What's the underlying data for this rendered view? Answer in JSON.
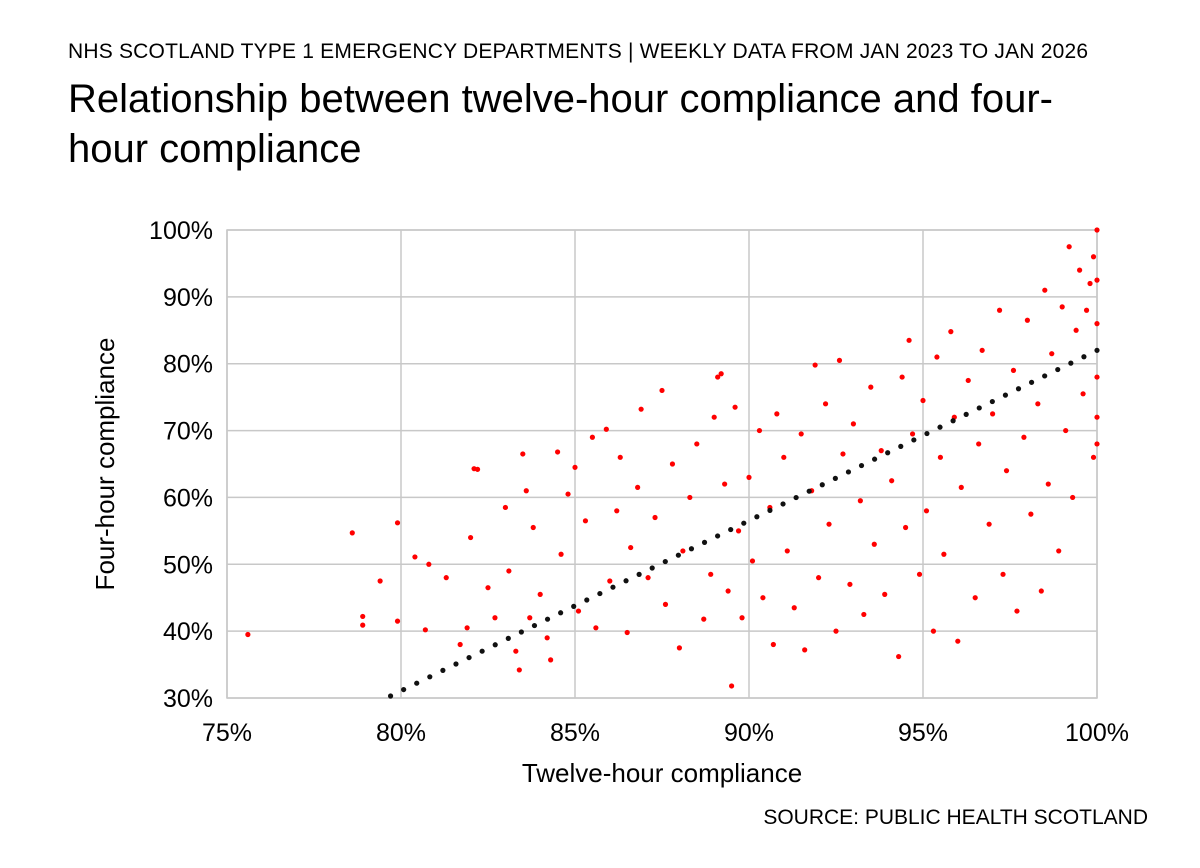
{
  "header": {
    "supertitle": "NHS SCOTLAND TYPE 1 EMERGENCY DEPARTMENTS | WEEKLY DATA FROM JAN 2023 TO JAN 2026",
    "title": "Relationship between twelve-hour compliance and four-hour compliance"
  },
  "footer": {
    "source": "SOURCE: PUBLIC HEALTH SCOTLAND"
  },
  "colors": {
    "points": "#ff0000",
    "trendline": "#111111",
    "grid": "#c8c8c8"
  },
  "chart_data": {
    "type": "scatter",
    "xlabel": "Twelve-hour compliance",
    "ylabel": "Four-hour compliance",
    "xlim": [
      75,
      100
    ],
    "ylim": [
      30,
      100
    ],
    "x_ticks": [
      "75%",
      "80%",
      "85%",
      "90%",
      "95%",
      "100%"
    ],
    "y_ticks": [
      "30%",
      "40%",
      "50%",
      "60%",
      "70%",
      "80%",
      "90%",
      "100%"
    ],
    "grid": true,
    "trendline": {
      "style": "dotted",
      "from": [
        79.7,
        30.3
      ],
      "to": [
        100,
        82.0
      ]
    },
    "series": [
      {
        "points": [
          [
            75.6,
            39.5
          ],
          [
            78.6,
            54.7
          ],
          [
            78.9,
            42.2
          ],
          [
            78.9,
            40.9
          ],
          [
            79.4,
            47.5
          ],
          [
            79.9,
            56.2
          ],
          [
            79.9,
            41.5
          ],
          [
            80.4,
            51.1
          ],
          [
            80.7,
            40.2
          ],
          [
            80.8,
            50.0
          ],
          [
            81.3,
            48.0
          ],
          [
            81.7,
            38.0
          ],
          [
            81.9,
            40.5
          ],
          [
            82.0,
            54.0
          ],
          [
            82.1,
            64.3
          ],
          [
            82.2,
            64.2
          ],
          [
            82.5,
            46.5
          ],
          [
            82.7,
            42.0
          ],
          [
            83.0,
            58.5
          ],
          [
            83.1,
            49.0
          ],
          [
            83.3,
            37.0
          ],
          [
            83.4,
            34.2
          ],
          [
            83.5,
            66.5
          ],
          [
            83.6,
            61.0
          ],
          [
            83.7,
            42.0
          ],
          [
            83.8,
            55.5
          ],
          [
            84.0,
            45.5
          ],
          [
            84.2,
            39.0
          ],
          [
            84.3,
            35.7
          ],
          [
            84.5,
            66.8
          ],
          [
            84.6,
            51.5
          ],
          [
            84.8,
            60.5
          ],
          [
            85.0,
            64.5
          ],
          [
            85.1,
            43.0
          ],
          [
            85.3,
            56.5
          ],
          [
            85.5,
            69.0
          ],
          [
            85.6,
            40.5
          ],
          [
            85.9,
            70.2
          ],
          [
            86.0,
            47.5
          ],
          [
            86.2,
            58.0
          ],
          [
            86.3,
            66.0
          ],
          [
            86.5,
            39.8
          ],
          [
            86.6,
            52.5
          ],
          [
            86.8,
            61.5
          ],
          [
            86.9,
            73.2
          ],
          [
            87.1,
            48.0
          ],
          [
            87.3,
            57.0
          ],
          [
            87.5,
            76.0
          ],
          [
            87.6,
            44.0
          ],
          [
            87.8,
            65.0
          ],
          [
            88.0,
            37.5
          ],
          [
            88.1,
            52.0
          ],
          [
            88.3,
            60.0
          ],
          [
            88.5,
            68.0
          ],
          [
            88.7,
            41.8
          ],
          [
            88.9,
            48.5
          ],
          [
            89.0,
            72.0
          ],
          [
            89.1,
            78.0
          ],
          [
            89.2,
            78.5
          ],
          [
            89.3,
            62.0
          ],
          [
            89.4,
            46.0
          ],
          [
            89.5,
            31.8
          ],
          [
            89.6,
            73.5
          ],
          [
            89.7,
            55.0
          ],
          [
            89.8,
            42.0
          ],
          [
            90.0,
            63.0
          ],
          [
            90.1,
            50.5
          ],
          [
            90.3,
            70.0
          ],
          [
            90.4,
            45.0
          ],
          [
            90.6,
            58.5
          ],
          [
            90.7,
            38.0
          ],
          [
            90.8,
            72.5
          ],
          [
            91.0,
            66.0
          ],
          [
            91.1,
            52.0
          ],
          [
            91.3,
            43.5
          ],
          [
            91.5,
            69.5
          ],
          [
            91.6,
            37.2
          ],
          [
            91.8,
            61.0
          ],
          [
            91.9,
            79.8
          ],
          [
            92.0,
            48.0
          ],
          [
            92.2,
            74.0
          ],
          [
            92.3,
            56.0
          ],
          [
            92.5,
            40.0
          ],
          [
            92.6,
            80.5
          ],
          [
            92.7,
            66.5
          ],
          [
            92.9,
            47.0
          ],
          [
            93.0,
            71.0
          ],
          [
            93.2,
            59.5
          ],
          [
            93.3,
            42.5
          ],
          [
            93.5,
            76.5
          ],
          [
            93.6,
            53.0
          ],
          [
            93.8,
            67.0
          ],
          [
            93.9,
            45.5
          ],
          [
            94.1,
            62.5
          ],
          [
            94.3,
            36.2
          ],
          [
            94.4,
            78.0
          ],
          [
            94.5,
            55.5
          ],
          [
            94.6,
            83.5
          ],
          [
            94.7,
            69.5
          ],
          [
            94.9,
            48.5
          ],
          [
            95.0,
            74.5
          ],
          [
            95.1,
            58.0
          ],
          [
            95.3,
            40.0
          ],
          [
            95.4,
            81.0
          ],
          [
            95.5,
            66.0
          ],
          [
            95.6,
            51.5
          ],
          [
            95.8,
            84.8
          ],
          [
            95.9,
            72.0
          ],
          [
            96.0,
            38.5
          ],
          [
            96.1,
            61.5
          ],
          [
            96.3,
            77.5
          ],
          [
            96.5,
            45.0
          ],
          [
            96.6,
            68.0
          ],
          [
            96.7,
            82.0
          ],
          [
            96.9,
            56.0
          ],
          [
            97.0,
            72.5
          ],
          [
            97.2,
            88.0
          ],
          [
            97.3,
            48.5
          ],
          [
            97.4,
            64.0
          ],
          [
            97.6,
            79.0
          ],
          [
            97.7,
            43.0
          ],
          [
            97.9,
            69.0
          ],
          [
            98.0,
            86.5
          ],
          [
            98.1,
            57.5
          ],
          [
            98.3,
            74.0
          ],
          [
            98.4,
            46.0
          ],
          [
            98.5,
            91.0
          ],
          [
            98.6,
            62.0
          ],
          [
            98.7,
            81.5
          ],
          [
            98.9,
            52.0
          ],
          [
            99.0,
            88.5
          ],
          [
            99.1,
            70.0
          ],
          [
            99.2,
            97.5
          ],
          [
            99.3,
            60.0
          ],
          [
            99.4,
            85.0
          ],
          [
            99.5,
            94.0
          ],
          [
            99.6,
            75.5
          ],
          [
            99.7,
            88.0
          ],
          [
            99.8,
            92.0
          ],
          [
            99.9,
            96.0
          ],
          [
            99.9,
            66.0
          ],
          [
            100.0,
            100.0
          ],
          [
            100.0,
            92.5
          ],
          [
            100.0,
            86.0
          ],
          [
            100.0,
            78.0
          ],
          [
            100.0,
            72.0
          ],
          [
            100.0,
            68.0
          ]
        ]
      }
    ]
  }
}
